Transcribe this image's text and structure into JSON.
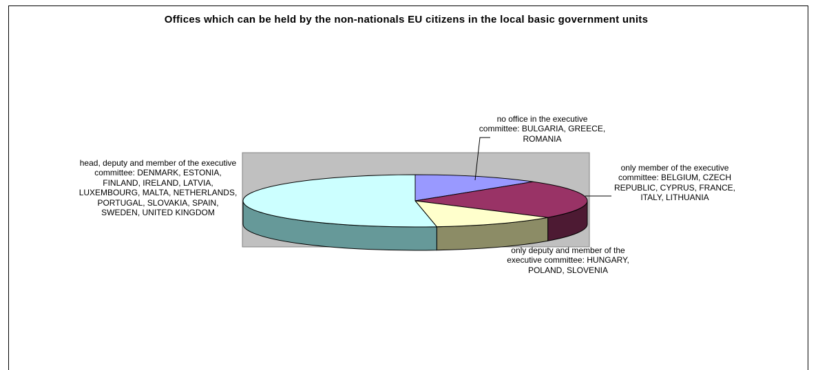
{
  "chart_data": {
    "type": "pie",
    "title": "Offices which can be held by the non-nationals EU citizens in the local basic government units",
    "categories": [
      "no office in the executive committee",
      "only member of the executive committee",
      "only deputy and member of the executive committee",
      "head, deputy and member of the executive committee"
    ],
    "values": [
      3,
      6,
      3,
      13
    ],
    "colors": [
      "#9999ff",
      "#993366",
      "#ffffcc",
      "#ccffff"
    ],
    "side_colors": [
      "#666699",
      "#4d1a33",
      "#8c8c66",
      "#669999"
    ],
    "plot_background": "#c0c0c0",
    "labels": {
      "none": "no office in the executive committee: BULGARIA, GREECE, ROMANIA",
      "member": "only member of the executive committee: BELGIUM, CZECH REPUBLIC, CYPRUS, FRANCE, ITALY, LITHUANIA",
      "deputy": "only deputy and member of the executive committee: HUNGARY, POLAND, SLOVENIA",
      "head": "head, deputy and member of the executive committee: DENMARK, ESTONIA, FINLAND, IRELAND, LATVIA, LUXEMBOURG, MALTA, NETHERLANDS, PORTUGAL, SLOVAKIA, SPAIN, SWEDEN, UNITED KINGDOM"
    }
  }
}
